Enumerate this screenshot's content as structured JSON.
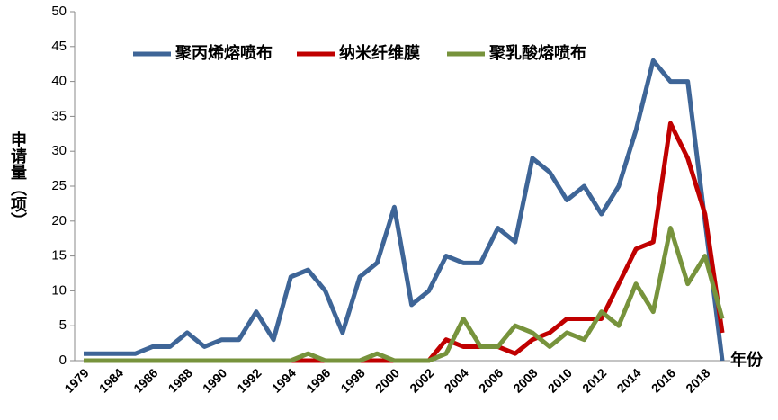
{
  "chart_data": {
    "type": "line",
    "y_label": "申请量（项）",
    "x_label": "年份",
    "categories": [
      "1979",
      null,
      "1984",
      null,
      "1986",
      null,
      "1988",
      null,
      "1990",
      null,
      "1992",
      null,
      "1994",
      null,
      "1996",
      null,
      "1998",
      null,
      "2000",
      null,
      "2002",
      null,
      "2004",
      null,
      "2006",
      null,
      "2008",
      null,
      "2010",
      null,
      "2012",
      null,
      "2014",
      null,
      "2016",
      null,
      "2018",
      null
    ],
    "series": [
      {
        "name": "聚丙烯熔喷布",
        "color": "#3e6597",
        "values": [
          1,
          1,
          1,
          1,
          2,
          2,
          4,
          2,
          3,
          3,
          7,
          3,
          12,
          13,
          10,
          4,
          12,
          14,
          22,
          8,
          10,
          15,
          14,
          14,
          19,
          17,
          29,
          27,
          23,
          25,
          21,
          25,
          33,
          43,
          40,
          40,
          20,
          0
        ]
      },
      {
        "name": "纳米纤维膜",
        "color": "#c00000",
        "values": [
          0,
          0,
          0,
          0,
          0,
          0,
          0,
          0,
          0,
          0,
          0,
          0,
          0,
          0,
          0,
          0,
          0,
          0,
          0,
          0,
          0,
          3,
          2,
          2,
          2,
          1,
          3,
          4,
          6,
          6,
          6,
          11,
          16,
          17,
          34,
          29,
          21,
          4
        ]
      },
      {
        "name": "聚乳酸熔喷布",
        "color": "#77933c",
        "values": [
          0,
          0,
          0,
          0,
          0,
          0,
          0,
          0,
          0,
          0,
          0,
          0,
          0,
          1,
          0,
          0,
          0,
          1,
          0,
          0,
          0,
          1,
          6,
          2,
          2,
          5,
          4,
          2,
          4,
          3,
          7,
          5,
          11,
          7,
          19,
          11,
          15,
          6
        ]
      }
    ],
    "ylim": [
      0,
      50
    ],
    "yticks": [
      0,
      5,
      10,
      15,
      20,
      25,
      30,
      35,
      40,
      45,
      50
    ],
    "grid": false
  }
}
